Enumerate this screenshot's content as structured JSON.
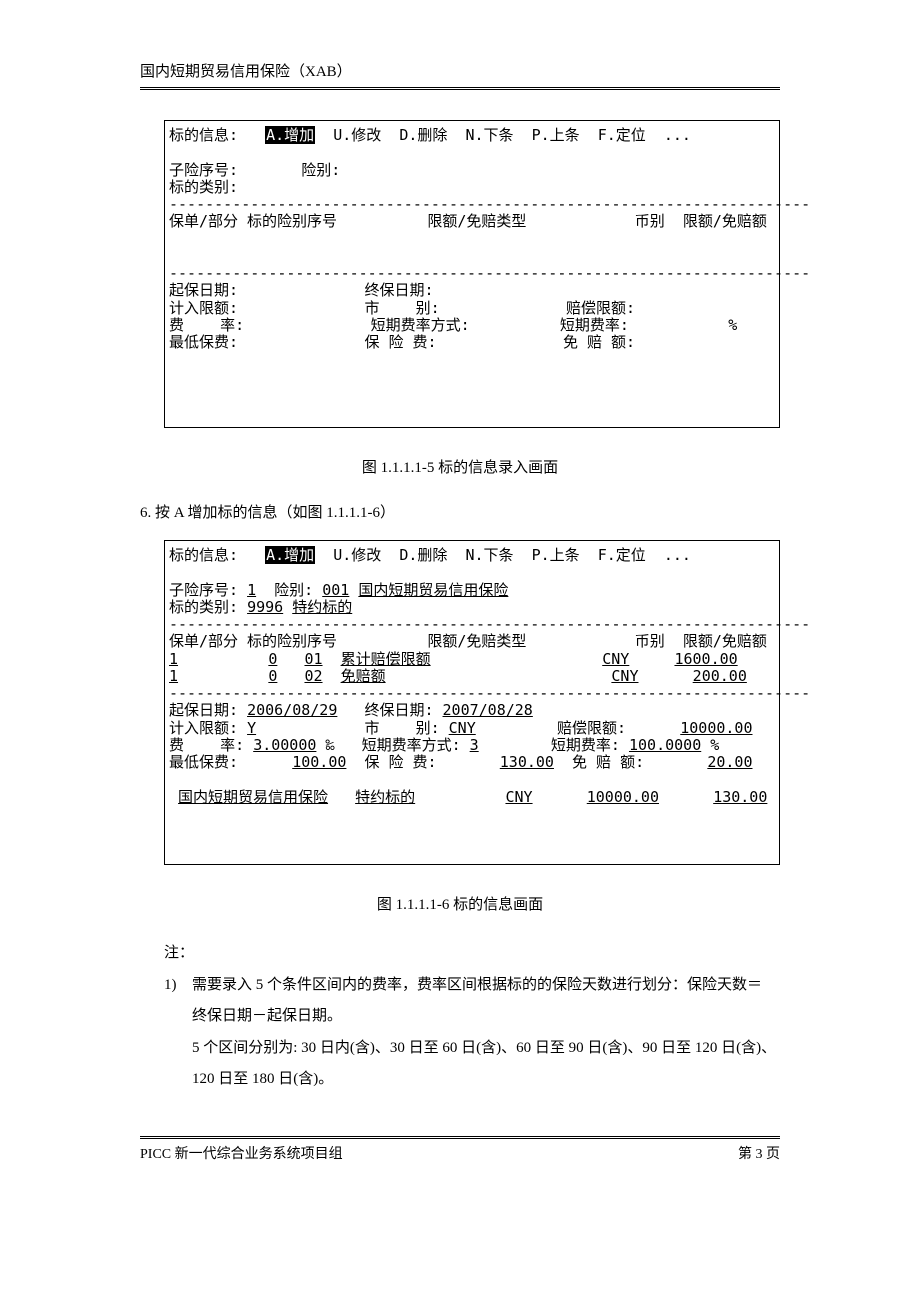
{
  "header": {
    "title": "国内短期贸易信用保险（XAB）"
  },
  "box1": {
    "menu": {
      "label": "标的信息:",
      "a": "A.增加",
      "u": "U.修改",
      "d": "D.删除",
      "n": "N.下条",
      "p": "P.上条",
      "f": "F.定位",
      "dots": "..."
    },
    "row2a": "子险序号:       险别:",
    "row2b": "标的类别:",
    "row3": "保单/部分 标的险别序号          限额/免赔类型            币别  限额/免赔额",
    "row4a": "起保日期:              终保日期:",
    "row4b": "计入限额:              市    别:              赔偿限额:",
    "row4c": "费    率:              短期费率方式:          短期费率:           %",
    "row4d": "最低保费:              保 险 费:              免 赔 额:"
  },
  "caption1": "图 1.1.1.1-5 标的信息录入画面",
  "step6": "6.   按 A 增加标的信息（如图 1.1.1.1-6）",
  "box2": {
    "menu": {
      "label": "标的信息:",
      "a": "A.增加",
      "u": "U.修改",
      "d": "D.删除",
      "n": "N.下条",
      "p": "P.上条",
      "f": "F.定位",
      "dots": "..."
    },
    "r_sub_a": "子险序号:",
    "r_sub_b": "1",
    "r_sub_c": " 险别:",
    "r_sub_d": "001",
    "r_sub_e": "国内短期贸易信用保险",
    "r_cat_a": "标的类别:",
    "r_cat_b": "9996",
    "r_cat_c": "特约标的",
    "hdr": "保单/部分 标的险别序号          限额/免赔类型            币别  限额/免赔额",
    "tr1_a": "1",
    "tr1_b": "0",
    "tr1_c": "01",
    "tr1_d": "累计赔偿限额",
    "tr1_e": "CNY",
    "tr1_f": "1600.00",
    "tr2_a": "1",
    "tr2_b": "0",
    "tr2_c": "02",
    "tr2_d": "免赔额",
    "tr2_e": "CNY",
    "tr2_f": "200.00",
    "d1a": "起保日期:",
    "d1b": "2006/08/29",
    "d1c": "终保日期:",
    "d1d": "2007/08/28",
    "d2a": "计入限额:",
    "d2b": "Y",
    "d2c": " 市    别:",
    "d2d": "CNY",
    "d2e": "赔偿限额:",
    "d2f": "10000.00",
    "d3a": "费    率:",
    "d3b": "3.00000",
    "d3c": "‰",
    "d3d": "短期费率方式:",
    "d3e": "3",
    "d3f": "短期费率:",
    "d3g": "100.0000",
    "d3h": "%",
    "d4a": "最低保费:",
    "d4b": "100.00",
    "d4c": "保 险 费:",
    "d4d": "130.00",
    "d4e": "免 赔 额:",
    "d4f": "20.00",
    "s1": "国内短期贸易信用保险",
    "s2": "特约标的",
    "s3": "CNY",
    "s4": "10000.00",
    "s5": "130.00"
  },
  "caption2": "图 1.1.1.1-6 标的信息画面",
  "notes": {
    "label": "注：",
    "n1a": "1)",
    "n1b": "需要录入 5 个条件区间内的费率，费率区间根据标的的保险天数进行划分：保险天数＝",
    "n1c": "终保日期－起保日期。",
    "n1d": "5 个区间分别为: 30 日内(含)、30 日至 60 日(含)、60 日至 90 日(含)、90 日至 120 日(含)、",
    "n1e": "120 日至 180 日(含)。"
  },
  "footer": {
    "left": "PICC 新一代综合业务系统项目组",
    "right": "第 3 页"
  },
  "dash": "-----------------------------------------------------------------------"
}
